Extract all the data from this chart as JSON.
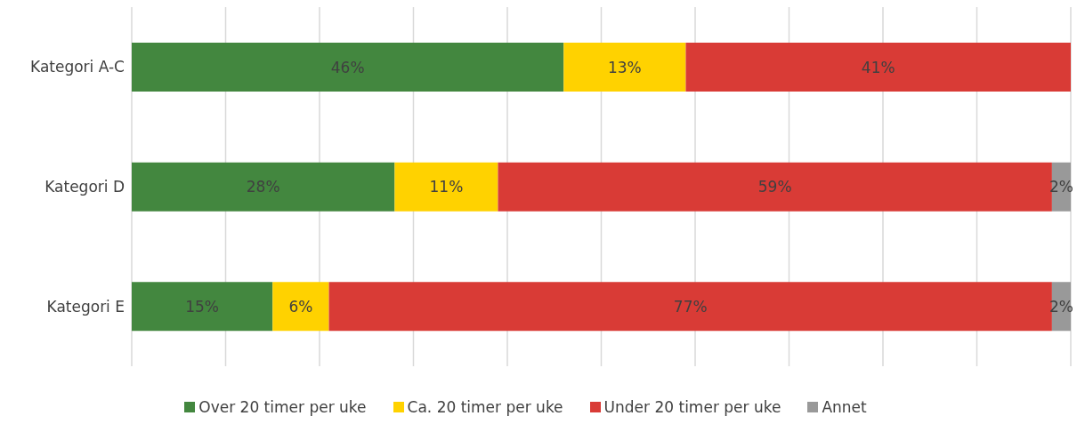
{
  "chart_data": {
    "type": "bar",
    "orientation": "horizontal",
    "stacked": true,
    "categories": [
      "Kategori A-C",
      "Kategori D",
      "Kategori E"
    ],
    "series": [
      {
        "name": "Over 20 timer per uke",
        "color": "#43873f",
        "values": [
          46,
          28,
          15
        ],
        "value_labels": [
          "46%",
          "28%",
          "15%"
        ]
      },
      {
        "name": "Ca. 20 timer per uke",
        "color": "#ffd200",
        "values": [
          13,
          11,
          6
        ],
        "value_labels": [
          "13%",
          "11%",
          "6%"
        ]
      },
      {
        "name": "Under 20 timer per uke",
        "color": "#d93b36",
        "values": [
          41,
          59,
          77
        ],
        "value_labels": [
          "41%",
          "59%",
          "77%"
        ]
      },
      {
        "name": "Annet",
        "color": "#999999",
        "values": [
          null,
          2,
          2
        ],
        "value_labels": [
          null,
          "2%",
          "2%"
        ]
      }
    ],
    "xlim": [
      0,
      100
    ],
    "xticks": [
      {
        "value": 0,
        "label": null
      },
      {
        "value": 10,
        "label": null
      },
      {
        "value": 20,
        "label": null
      },
      {
        "value": 30,
        "label": null
      },
      {
        "value": 40,
        "label": null
      },
      {
        "value": 50,
        "label": null
      },
      {
        "value": 60,
        "label": null
      },
      {
        "value": 70,
        "label": null
      },
      {
        "value": 80,
        "label": null
      },
      {
        "value": 90,
        "label": null
      },
      {
        "value": 100,
        "label": null
      }
    ],
    "tick_labels": "y",
    "grid": "x",
    "legend": "bottom"
  }
}
